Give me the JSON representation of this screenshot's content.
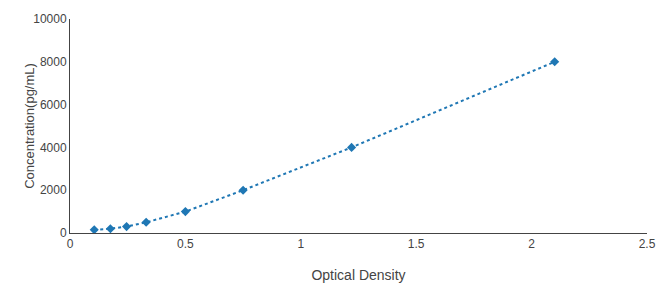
{
  "chart_data": {
    "type": "line",
    "xlabel": "Optical Density",
    "ylabel": "Concentration(pg/mL)",
    "x": [
      0.105,
      0.175,
      0.245,
      0.33,
      0.5,
      0.75,
      1.22,
      2.1
    ],
    "values": [
      150,
      200,
      300,
      500,
      1000,
      2000,
      4000,
      8000
    ],
    "xlim": [
      0,
      2.5
    ],
    "ylim": [
      0,
      10000
    ],
    "xticks": [
      0,
      0.5,
      1,
      1.5,
      2,
      2.5
    ],
    "yticks": [
      0,
      2000,
      4000,
      6000,
      8000,
      10000
    ],
    "marker": "diamond",
    "line_style": "dotted",
    "grid": false
  }
}
